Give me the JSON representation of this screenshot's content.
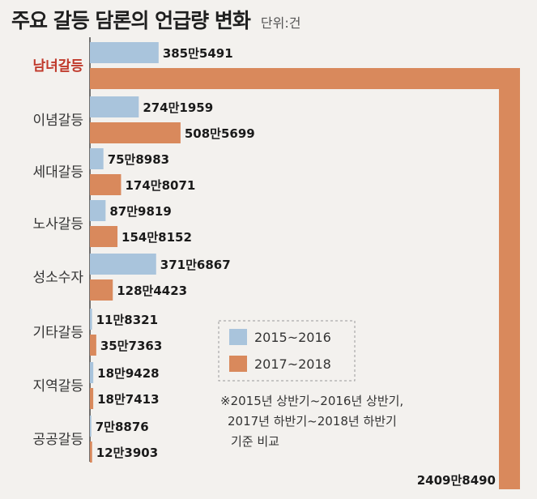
{
  "chart_data": {
    "type": "bar",
    "orientation": "horizontal",
    "title": "주요 갈등 담론의 언급량 변화",
    "unit": "단위:건",
    "categories": [
      "남녀갈등",
      "이념갈등",
      "세대갈등",
      "노사갈등",
      "성소수자",
      "기타갈등",
      "지역갈등",
      "공공갈등"
    ],
    "highlight_category": "남녀갈등",
    "series": [
      {
        "name": "2015~2016",
        "color": "#a9c4dc",
        "values": [
          3855491,
          2741959,
          758983,
          879819,
          3716867,
          118321,
          189428,
          78876
        ],
        "labels": [
          "385만5491",
          "274만1959",
          "75만8983",
          "87만9819",
          "371만6867",
          "11만8321",
          "18만9428",
          "7만8876"
        ]
      },
      {
        "name": "2017~2018",
        "color": "#d9895c",
        "values": [
          24098490,
          5085699,
          1748071,
          1548152,
          1284423,
          357363,
          187413,
          123903
        ],
        "labels": [
          "2409만8490",
          "508만5699",
          "174만8071",
          "154만8152",
          "128만4423",
          "35만7363",
          "18만7413",
          "12만3903"
        ]
      }
    ],
    "note_lines": [
      "※2015년 상반기~2016년 상반기,",
      "2017년 하반기~2018년 하반기",
      "기준 비교"
    ],
    "legend_position": "center-right",
    "grid": false,
    "highlight_color": "#c0392b"
  }
}
